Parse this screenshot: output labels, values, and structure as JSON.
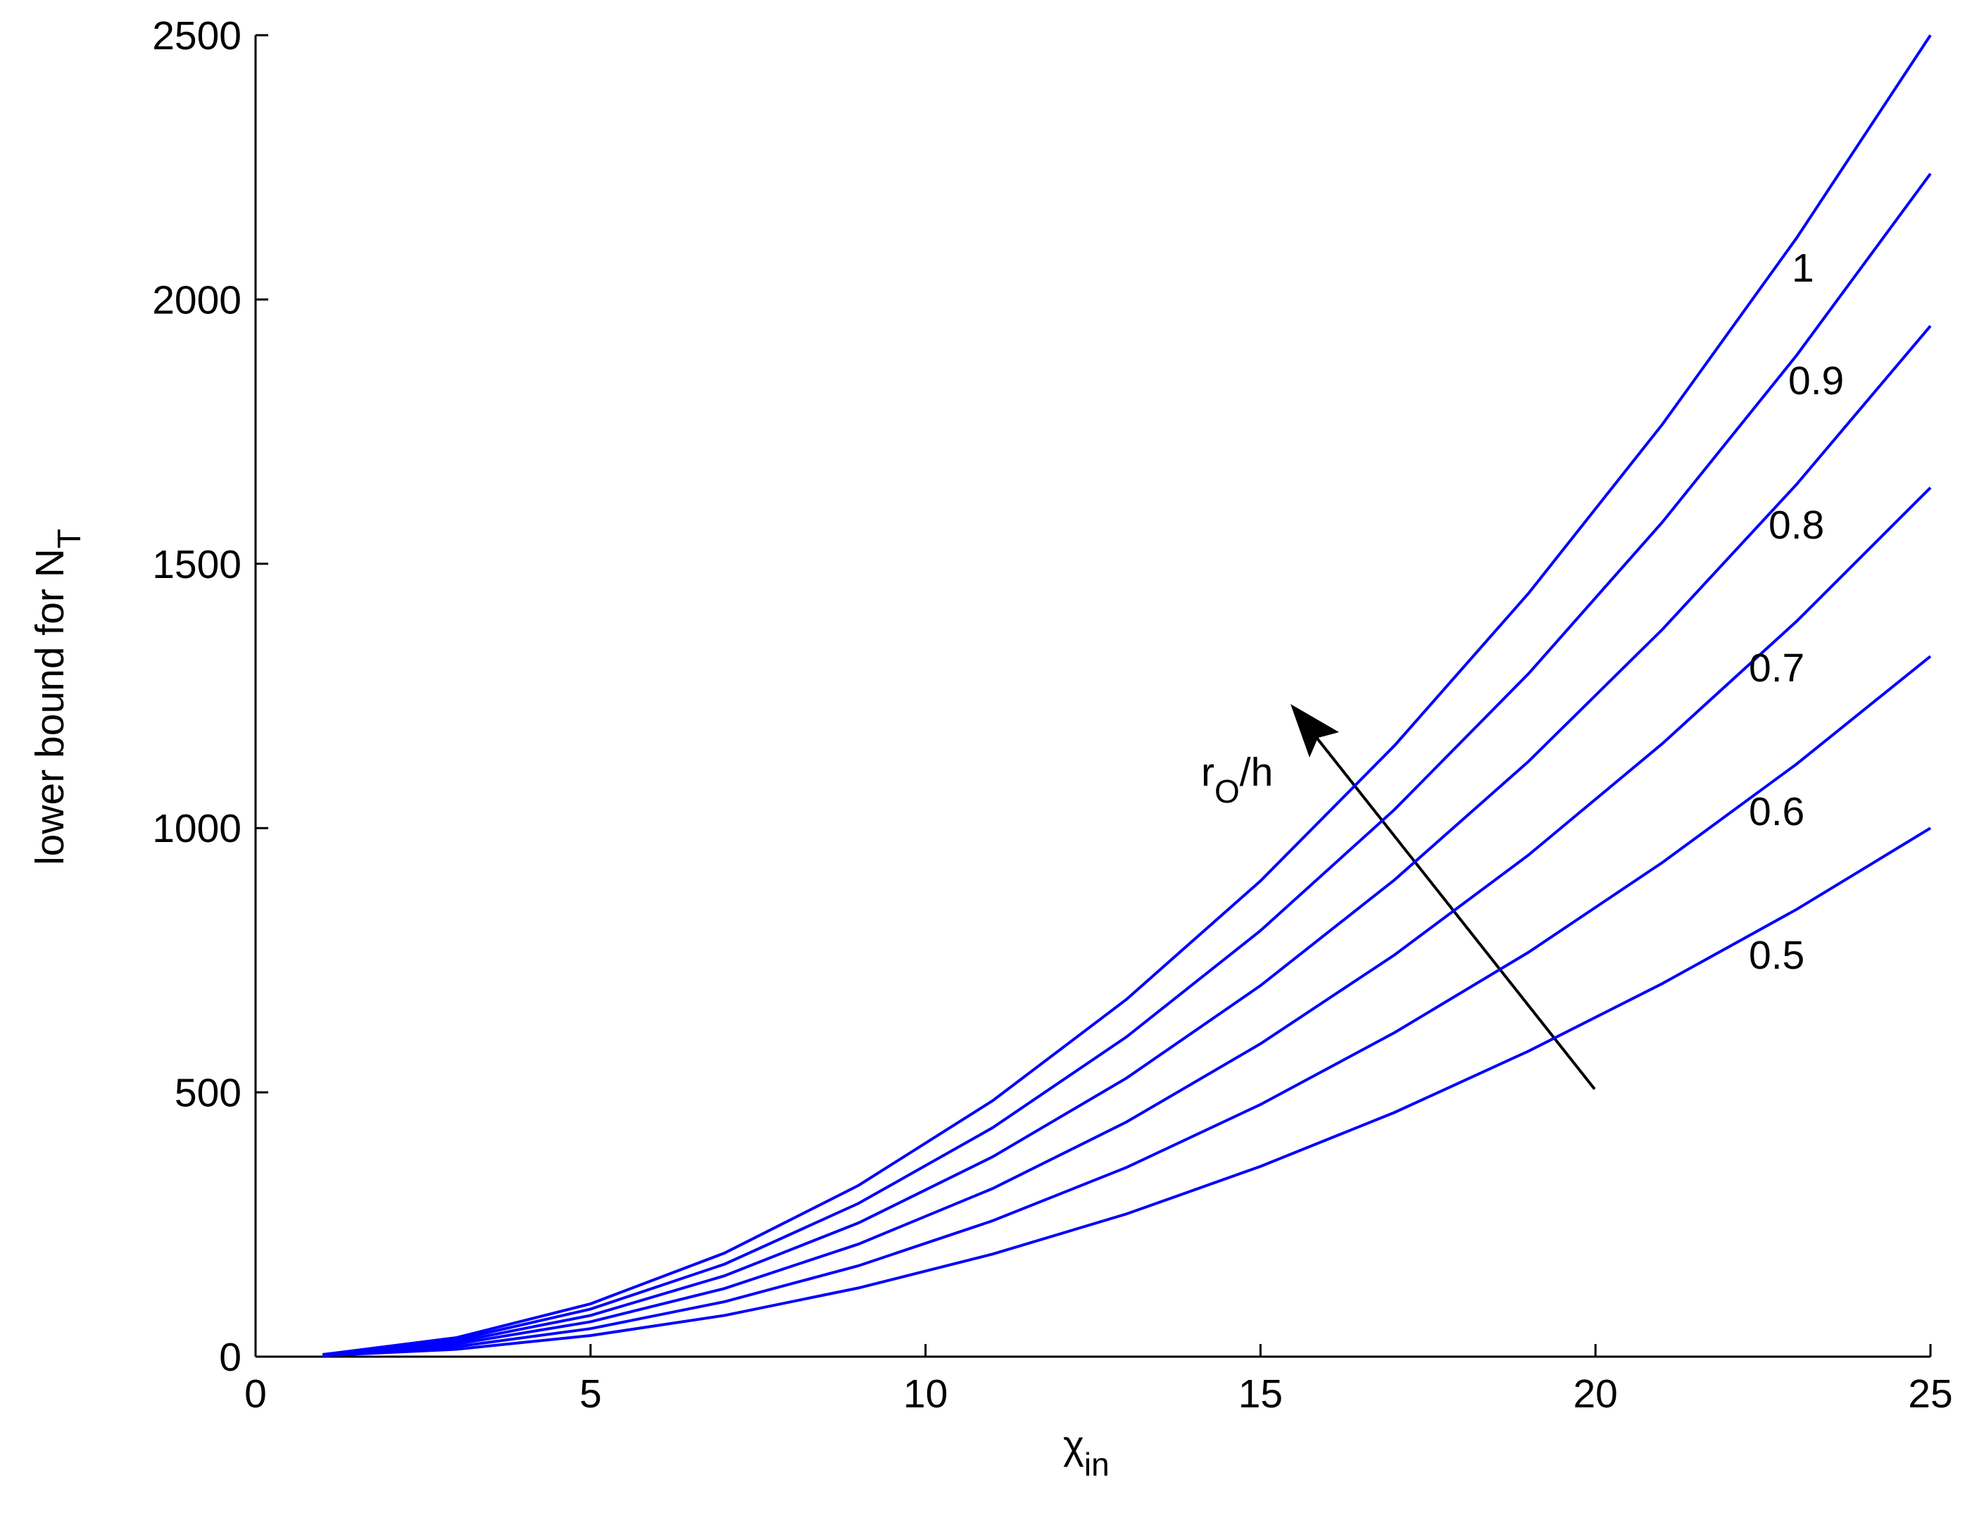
{
  "chart_data": {
    "type": "line",
    "x_label": {
      "text": "χ",
      "sub": "in"
    },
    "y_label": {
      "text": "lower bound for N",
      "sub": "T"
    },
    "annotation": {
      "text": "r",
      "sub": "O",
      "rest": "/h"
    },
    "x": [
      1,
      3,
      5,
      7,
      9,
      11,
      13,
      15,
      17,
      19,
      21,
      23,
      25
    ],
    "series": [
      {
        "name": "1",
        "color": "#0000ff",
        "values": [
          4,
          36,
          100,
          196,
          324,
          484,
          676,
          900,
          1156,
          1444,
          1764,
          2116,
          2500
        ]
      },
      {
        "name": "0.9",
        "color": "#0000ff",
        "values": [
          4,
          32,
          90,
          175,
          290,
          433,
          605,
          806,
          1035,
          1292,
          1579,
          1894,
          2238
        ]
      },
      {
        "name": "0.8",
        "color": "#0000ff",
        "values": [
          3,
          28,
          78,
          153,
          253,
          378,
          527,
          702,
          902,
          1126,
          1376,
          1650,
          1950
        ]
      },
      {
        "name": "0.7",
        "color": "#0000ff",
        "values": [
          3,
          24,
          66,
          129,
          213,
          318,
          444,
          592,
          760,
          949,
          1160,
          1391,
          1644
        ]
      },
      {
        "name": "0.6",
        "color": "#0000ff",
        "values": [
          2,
          19,
          53,
          104,
          172,
          257,
          358,
          477,
          613,
          765,
          935,
          1121,
          1325
        ]
      },
      {
        "name": "0.5",
        "color": "#0000ff",
        "values": [
          2,
          14,
          40,
          78,
          130,
          194,
          270,
          360,
          462,
          578,
          706,
          846,
          1000
        ]
      }
    ],
    "xlim": [
      0,
      25
    ],
    "xticks": [
      0,
      5,
      10,
      15,
      20,
      25
    ],
    "ylim": [
      0,
      2500
    ],
    "yticks": [
      0,
      500,
      1000,
      1500,
      2000,
      2500
    ],
    "grid": false
  }
}
